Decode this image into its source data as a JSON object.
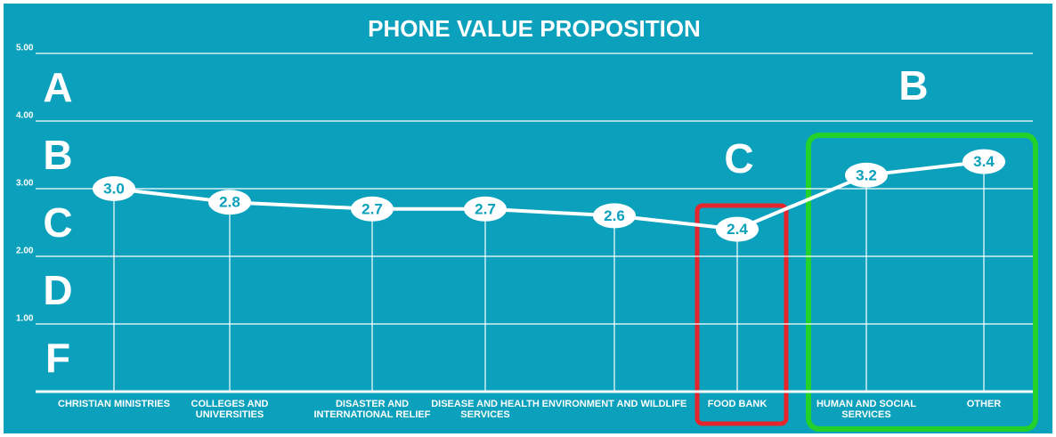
{
  "chart_data": {
    "type": "line",
    "title": "PHONE VALUE PROPOSITION",
    "categories": [
      "CHRISTIAN MINISTRIES",
      "COLLEGES AND UNIVERSITIES",
      "DISASTER AND INTERNATIONAL RELIEF",
      "DISEASE AND HEALTH SERVICES",
      "ENVIRONMENT AND WILDLIFE",
      "FOOD BANK",
      "HUMAN AND SOCIAL SERVICES",
      "OTHER"
    ],
    "values": [
      3.0,
      2.8,
      2.7,
      2.7,
      2.6,
      2.4,
      3.2,
      3.4
    ],
    "value_labels": [
      "3.0",
      "2.8",
      "2.7",
      "2.7",
      "2.6",
      "2.4",
      "3.2",
      "3.4"
    ],
    "color": "#ffffff",
    "ylim": [
      0,
      5
    ],
    "yticks": [
      {
        "value": 1,
        "label": "1.00"
      },
      {
        "value": 2,
        "label": "2.00"
      },
      {
        "value": 3,
        "label": "3.00"
      },
      {
        "value": 4,
        "label": "4.00"
      },
      {
        "value": 5,
        "label": "5.00"
      }
    ],
    "grid": true,
    "grades": [
      "A",
      "B",
      "C",
      "D",
      "F"
    ],
    "annotations": [
      "C",
      "B"
    ]
  }
}
